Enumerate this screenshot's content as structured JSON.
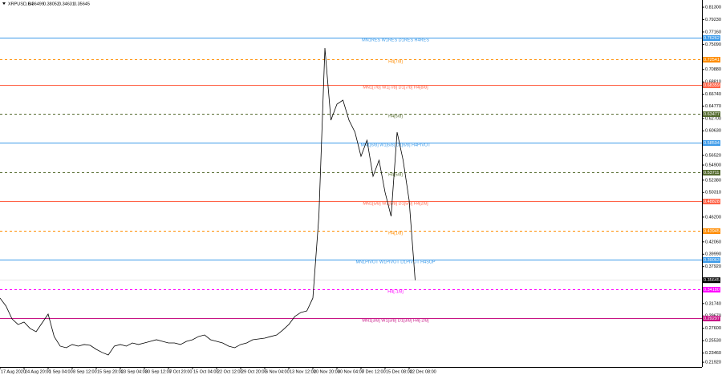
{
  "chart_data": {
    "type": "line",
    "title": "XRPUSD,H4",
    "ohlc": [
      0.36499,
      0.38052,
      0.34631,
      0.35645
    ],
    "categories": [
      "17 Aug 2020",
      null,
      null,
      null,
      "24 Aug 20:00",
      null,
      null,
      null,
      "1 Sep 04:00",
      null,
      null,
      null,
      "8 Sep 12:00",
      null,
      null,
      null,
      "15 Sep 20:00",
      null,
      null,
      null,
      "23 Sep 04:00",
      null,
      null,
      null,
      "30 Sep 12:00",
      null,
      null,
      null,
      "7 Oct 20:00",
      null,
      null,
      null,
      "15 Oct 04:00",
      null,
      null,
      null,
      "22 Oct 12:00",
      null,
      null,
      null,
      "29 Oct 20:00",
      null,
      null,
      null,
      "6 Nov 04:00",
      null,
      null,
      null,
      "13 Nov 12:00",
      null,
      null,
      null,
      "20 Nov 20:00",
      null,
      null,
      null,
      "30 Nov 04:00",
      null,
      null,
      null,
      "7 Dec 12:00",
      null,
      null,
      null,
      "15 Dec 08:00",
      null,
      null,
      null,
      "22 Dec 08:00",
      null
    ],
    "series": [
      {
        "name": "XRPUSD",
        "color": "#000000",
        "values": [
          0.3266,
          0.3132,
          0.2917,
          0.2824,
          0.2864,
          0.2757,
          0.2703,
          0.285,
          0.2998,
          0.2623,
          0.2462,
          0.2435,
          0.2489,
          0.2462,
          0.2489,
          0.2475,
          0.2408,
          0.2355,
          0.2314,
          0.2462,
          0.2489,
          0.2462,
          0.2515,
          0.2489,
          0.2515,
          0.2542,
          0.2569,
          0.2542,
          0.2515,
          0.2515,
          0.2489,
          0.2542,
          0.2569,
          0.2623,
          0.2649,
          0.2569,
          0.2542,
          0.2515,
          0.2462,
          0.2435,
          0.2489,
          0.2515,
          0.2569,
          0.2582,
          0.2596,
          0.2623,
          0.2649,
          0.273,
          0.2824,
          0.2958,
          0.3025,
          0.3051,
          0.3266,
          0.4633,
          0.7447,
          0.6241,
          0.6509,
          0.6576,
          0.6241,
          0.604,
          0.5638,
          0.5906,
          0.5303,
          0.5571,
          0.5035,
          0.4633,
          0.604,
          0.5571,
          0.4901,
          0.35645
        ]
      }
    ],
    "ylim": [
      0.2113,
      0.8251
    ],
    "yticks": [
      {
        "value": 0.813,
        "label": "0.81300"
      },
      {
        "value": 0.7923,
        "label": "0.79230"
      },
      {
        "value": 0.7716,
        "label": "0.77160"
      },
      {
        "value": 0.7509,
        "label": "0.75090"
      },
      {
        "value": 0.7088,
        "label": "0.70880"
      },
      {
        "value": 0.6881,
        "label": "0.68810"
      },
      {
        "value": 0.6674,
        "label": "0.66740"
      },
      {
        "value": 0.6477,
        "label": "0.64770"
      },
      {
        "value": 0.627,
        "label": "0.62700"
      },
      {
        "value": 0.6063,
        "label": "0.60630"
      },
      {
        "value": 0.5652,
        "label": "0.56520"
      },
      {
        "value": 0.549,
        "label": "0.54900"
      },
      {
        "value": 0.5238,
        "label": "0.52380"
      },
      {
        "value": 0.5031,
        "label": "0.50310"
      },
      {
        "value": 0.462,
        "label": "0.46200"
      },
      {
        "value": 0.4206,
        "label": "0.42060"
      },
      {
        "value": 0.3999,
        "label": "0.39990"
      },
      {
        "value": 0.3792,
        "label": "0.37920"
      },
      {
        "value": 0.3174,
        "label": "0.31740"
      },
      {
        "value": 0.2967,
        "label": "0.29670"
      },
      {
        "value": 0.276,
        "label": "0.27600"
      },
      {
        "value": 0.2553,
        "label": "0.25530"
      },
      {
        "value": 0.2346,
        "label": "0.23460"
      },
      {
        "value": 0.2192,
        "label": "0.21920"
      }
    ],
    "levels": [
      {
        "name": "MN1RES W1RES D1RES H4RES",
        "value": 0.76262,
        "value_label": "0.76262",
        "color": "#3d9be9",
        "dashed": false
      },
      {
        "name": "H4[7/8]",
        "value": 0.72541,
        "value_label": "0.72541",
        "color": "#ff8c00",
        "dashed": true
      },
      {
        "name": "MN1[7/8] W1[7/8] D1[7/8] H4[8/8]",
        "value": 0.68359,
        "value_label": "0.68359",
        "color": "#ff6347",
        "dashed": false
      },
      {
        "name": "H4[5/8]",
        "value": 0.63477,
        "value_label": "0.63477",
        "color": "#556b2f",
        "dashed": true
      },
      {
        "name": "MN1[6/8] W1[6/8] D1[6/8] H4PIVOT",
        "value": 0.58594,
        "value_label": "0.58594",
        "color": "#3d9be9",
        "dashed": false
      },
      {
        "name": "H4[5/8]",
        "value": 0.53711,
        "value_label": "0.53711",
        "color": "#556b2f",
        "dashed": true
      },
      {
        "name": "MN1[5/8] W1[5/8] D1[5/8] H4[2/8]",
        "value": 0.48828,
        "value_label": "0.48828",
        "color": "#ff6347",
        "dashed": false
      },
      {
        "name": "H4[1/8]",
        "value": 0.43945,
        "value_label": "0.43945",
        "color": "#ff8c00",
        "dashed": true
      },
      {
        "name": "MN1PIVOT W1PIVOT D1PIVOT H4SUP",
        "value": 0.39063,
        "value_label": "0.39063",
        "color": "#3d9be9",
        "dashed": false
      },
      {
        "name": "H4[-1/8]",
        "value": 0.3418,
        "value_label": "0.34180",
        "color": "#ff00ff",
        "dashed": true
      },
      {
        "name": "MN1[3/8] W1[3/8] D1[3/8] H4[-2/8]",
        "value": 0.29297,
        "value_label": "0.29297",
        "color": "#c71585",
        "dashed": false
      }
    ],
    "last": {
      "value": 0.35645,
      "label": "0.35645"
    }
  }
}
